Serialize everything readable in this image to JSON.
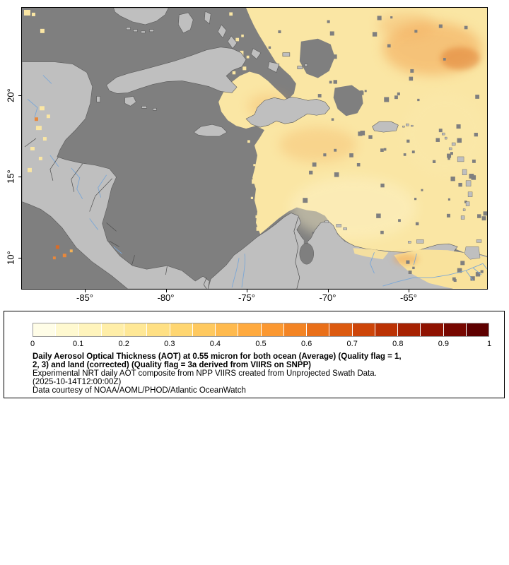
{
  "map": {
    "y_axis_labels": [
      "20°",
      "15°",
      "10°"
    ],
    "x_axis_labels": [
      "-85°",
      "-80°",
      "-75°",
      "-70°",
      "-65°"
    ],
    "colors": {
      "ocean_no_data": "#7f7f7f",
      "land": "#bfbfbf",
      "coastline": "#5a5a5a",
      "river": "#7ba7d6",
      "aot_low": "#fae6a4",
      "aot_mid": "#f2a04e",
      "aot_high": "#de7a2e"
    }
  },
  "legend": {
    "colorbar": {
      "segments": [
        "#fffde7",
        "#fff9d0",
        "#fff4bc",
        "#ffeea8",
        "#ffe896",
        "#ffe084",
        "#ffd671",
        "#ffc95f",
        "#ffba4e",
        "#ffaa3f",
        "#fb9831",
        "#f38424",
        "#e96f19",
        "#dc5a10",
        "#cd4509",
        "#bb3204",
        "#a62102",
        "#8f1201",
        "#770700",
        "#5e0000"
      ],
      "ticks": [
        "0",
        "0.1",
        "0.2",
        "0.3",
        "0.4",
        "0.5",
        "0.6",
        "0.7",
        "0.8",
        "0.9",
        "1"
      ]
    },
    "lines": {
      "title1": "Daily Aerosol Optical Thickness (AOT) at 0.55 micron for both ocean (Average) (Quality flag = 1,",
      "title2": "2, 3) and land (corrected) (Quality flag = 3a derived from VIIRS on SNPP)",
      "subtitle": "Experimental NRT daily AOT composite from NPP VIIRS created from Unprojected Swath Data.",
      "timestamp": "(2025-10-14T12:00:00Z)",
      "credit": "Data courtesy of NOAA/AOML/PHOD/Atlantic OceanWatch"
    }
  }
}
